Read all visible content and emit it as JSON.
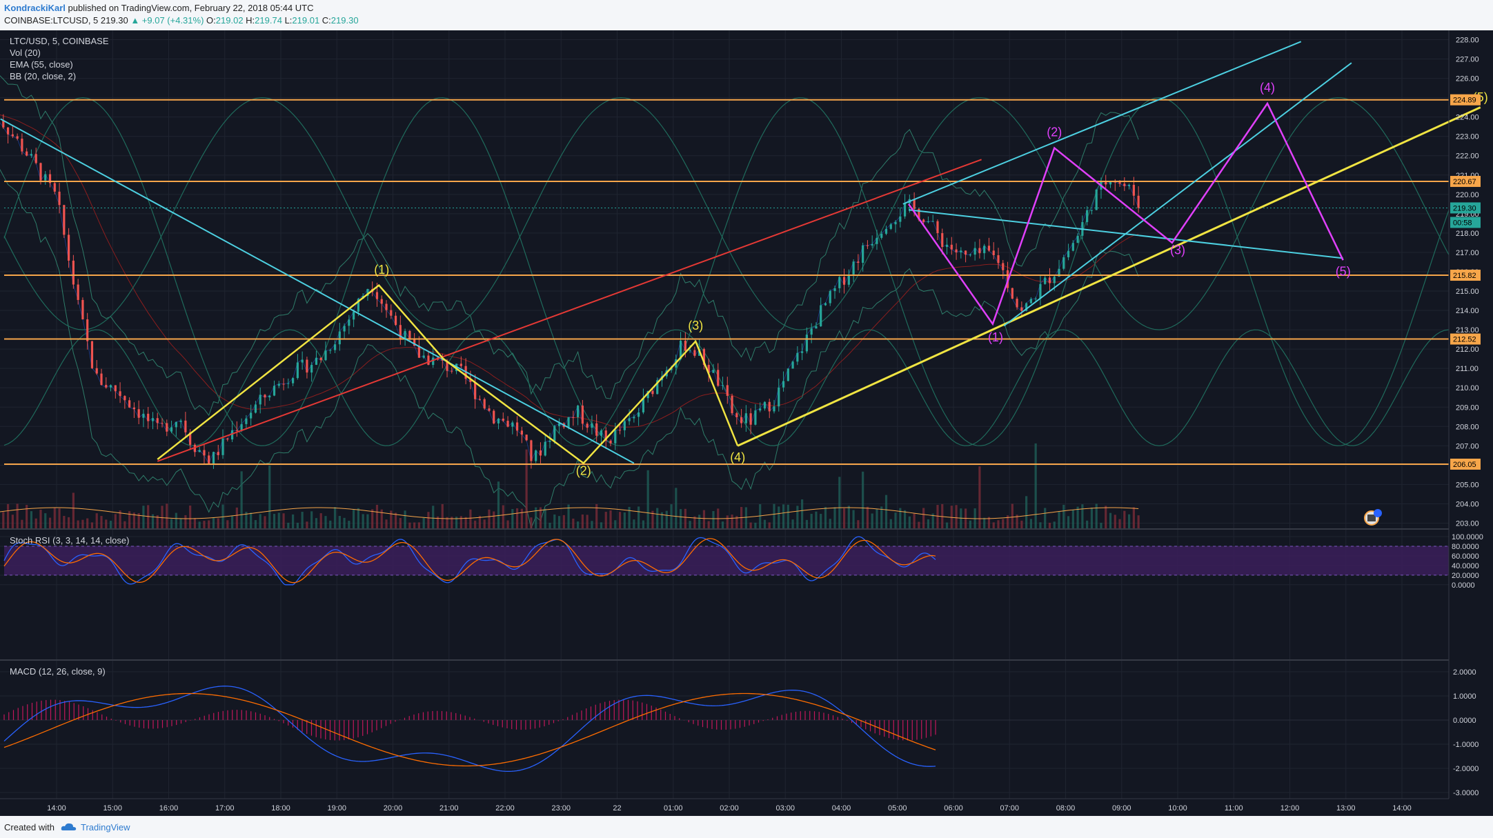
{
  "header": {
    "author": "KondrackiKarl",
    "published": " published on TradingView.com, February 22, 2018 05:44 UTC",
    "symbol": "COINBASE:LTCUSD, 5",
    "last": "219.30",
    "change": "▲ +9.07 (+4.31%)",
    "o_label": "O:",
    "o_val": "219.02",
    "h_label": "H:",
    "h_val": "219.74",
    "l_label": "L:",
    "l_val": "219.01",
    "c_label": "C:",
    "c_val": "219.30"
  },
  "legend": [
    "LTC/USD, 5, COINBASE",
    "Vol (20)",
    "EMA (55, close)",
    "BB (20, close, 2)"
  ],
  "rsi_title": "Stoch RSI (3, 3, 14, 14, close)",
  "macd_title": "MACD (12, 26, close, 9)",
  "price_axis": [
    "228.00",
    "227.00",
    "226.00",
    "225.00",
    "224.00",
    "223.00",
    "222.00",
    "221.00",
    "220.00",
    "219.00",
    "218.00",
    "217.00",
    "216.00",
    "215.00",
    "214.00",
    "213.00",
    "212.00",
    "211.00",
    "210.00",
    "209.00",
    "208.00",
    "207.00",
    "206.00",
    "205.00",
    "204.00",
    "203.00"
  ],
  "rsi_axis": [
    "100.0000",
    "80.0000",
    "60.0000",
    "40.0000",
    "20.0000",
    "0.0000"
  ],
  "macd_axis": [
    "2.0000",
    "1.0000",
    "0.0000",
    "-1.0000",
    "-2.0000",
    "-3.0000"
  ],
  "time_axis": [
    "14:00",
    "15:00",
    "16:00",
    "17:00",
    "18:00",
    "19:00",
    "20:00",
    "21:00",
    "22:00",
    "23:00",
    "22",
    "01:00",
    "02:00",
    "03:00",
    "04:00",
    "05:00",
    "06:00",
    "07:00",
    "08:00",
    "09:00",
    "10:00",
    "11:00",
    "12:00",
    "13:00",
    "14:00"
  ],
  "price_tags": [
    {
      "text": "224.89",
      "price": 224.89,
      "color": "#f7a64a"
    },
    {
      "text": "220.67",
      "price": 220.67,
      "color": "#f7a64a"
    },
    {
      "text": "219.30",
      "price": 219.3,
      "color": "#26a69a"
    },
    {
      "text": "00:58",
      "price": 218.55,
      "color": "#26a69a"
    },
    {
      "text": "215.82",
      "price": 215.82,
      "color": "#f7a64a"
    },
    {
      "text": "212.52",
      "price": 212.52,
      "color": "#f7a64a"
    },
    {
      "text": "206.05",
      "price": 206.05,
      "color": "#f7a64a"
    }
  ],
  "horizontal_levels": [
    224.89,
    220.67,
    215.82,
    212.52,
    206.05
  ],
  "wave_labels_yellow": [
    {
      "text": "(1)",
      "t": 5.8,
      "p": 215.9
    },
    {
      "text": "(2)",
      "t": 9.4,
      "p": 205.5
    },
    {
      "text": "(3)",
      "t": 11.4,
      "p": 213.0
    },
    {
      "text": "(4)",
      "t": 12.15,
      "p": 206.2
    },
    {
      "text": "(5)",
      "t": 25.4,
      "p": 224.8
    }
  ],
  "wave_labels_magenta": [
    {
      "text": "(1)",
      "t": 16.75,
      "p": 212.4
    },
    {
      "text": "(2)",
      "t": 17.8,
      "p": 223.0
    },
    {
      "text": "(3)",
      "t": 20.0,
      "p": 216.9
    },
    {
      "text": "(4)",
      "t": 21.6,
      "p": 225.3
    },
    {
      "text": "(5)",
      "t": 22.95,
      "p": 215.8
    }
  ],
  "footer": {
    "created": "Created with",
    "brand": "TradingView"
  },
  "colors": {
    "bg": "#131722",
    "up": "#26a69a",
    "down": "#ef5350",
    "yellow": "#f0e442",
    "cyan": "#4dd0e1",
    "magenta": "#e040fb",
    "red": "#e53935",
    "orange": "#f7a64a",
    "purple": "#3b1f5a"
  }
}
